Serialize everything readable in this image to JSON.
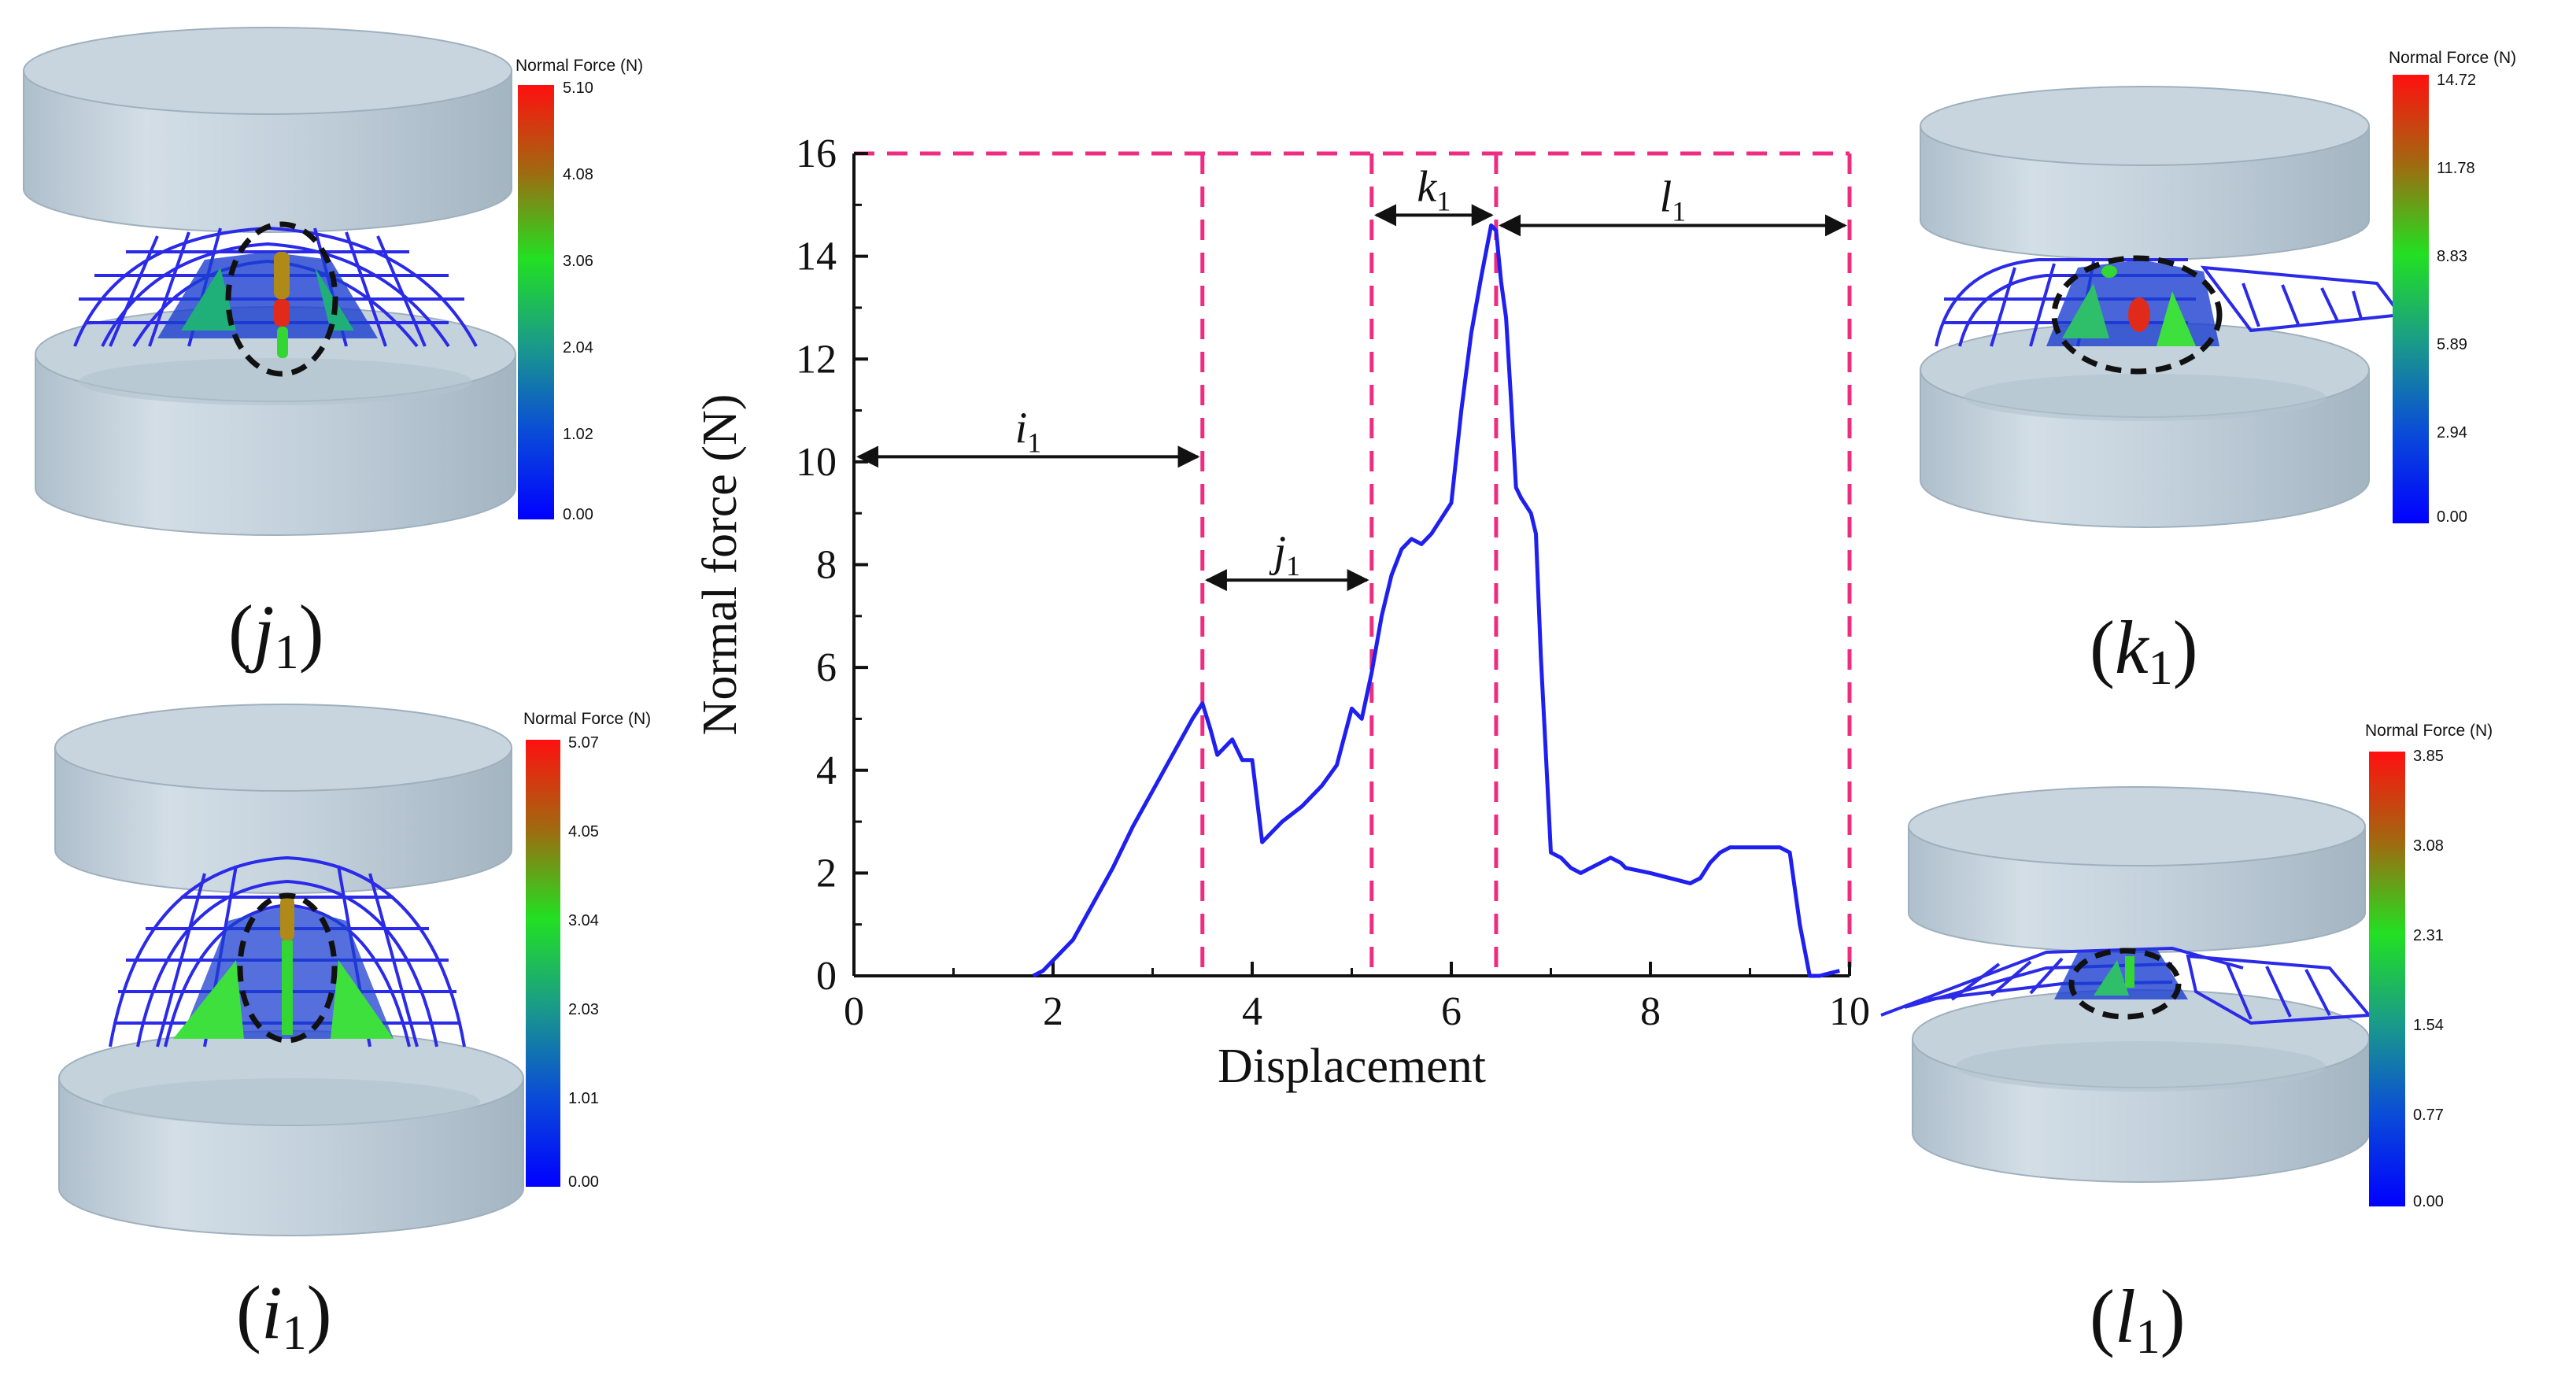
{
  "figure": {
    "panels": [
      {
        "id": "j1",
        "label_main": "j",
        "label_sub": "1",
        "colorbar": {
          "title": "Normal Force (N)",
          "ticks": [
            "5.10",
            "4.08",
            "3.06",
            "2.04",
            "1.02",
            "0.00"
          ]
        }
      },
      {
        "id": "i1",
        "label_main": "i",
        "label_sub": "1",
        "colorbar": {
          "title": "Normal Force (N)",
          "ticks": [
            "5.07",
            "4.05",
            "3.04",
            "2.03",
            "1.01",
            "0.00"
          ]
        }
      },
      {
        "id": "k1",
        "label_main": "k",
        "label_sub": "1",
        "colorbar": {
          "title": "Normal Force (N)",
          "ticks": [
            "14.72",
            "11.78",
            "8.83",
            "5.89",
            "2.94",
            "0.00"
          ]
        }
      },
      {
        "id": "l1",
        "label_main": "l",
        "label_sub": "1",
        "colorbar": {
          "title": "Normal Force (N)",
          "ticks": [
            "3.85",
            "3.08",
            "2.31",
            "1.54",
            "0.77",
            "0.00"
          ]
        }
      }
    ],
    "colors": {
      "curve": "#1f1ff0",
      "dash": "#ee2d82",
      "mesh": "#2a2ae8",
      "cylinder": "#c9d6e0",
      "cylinder_edge": "#a9b8c4"
    }
  },
  "chart_data": {
    "type": "line",
    "xlabel": "Displacement",
    "ylabel": "Normal force (N)",
    "xlim": [
      0,
      10
    ],
    "ylim": [
      0,
      16
    ],
    "xticks": [
      "0",
      "2",
      "4",
      "6",
      "8",
      "10"
    ],
    "yticks": [
      "0",
      "2",
      "4",
      "6",
      "8",
      "10",
      "12",
      "14",
      "16"
    ],
    "series": [
      {
        "name": "Normal force",
        "x": [
          1.8,
          1.9,
          2.0,
          2.2,
          2.4,
          2.6,
          2.8,
          3.0,
          3.2,
          3.4,
          3.5,
          3.58,
          3.65,
          3.8,
          3.9,
          4.0,
          4.1,
          4.2,
          4.3,
          4.5,
          4.7,
          4.85,
          5.0,
          5.1,
          5.2,
          5.3,
          5.4,
          5.5,
          5.6,
          5.7,
          5.8,
          5.9,
          6.0,
          6.1,
          6.2,
          6.3,
          6.4,
          6.45,
          6.5,
          6.55,
          6.6,
          6.65,
          6.7,
          6.8,
          6.85,
          6.9,
          6.95,
          7.0,
          7.1,
          7.2,
          7.3,
          7.4,
          7.5,
          7.6,
          7.7,
          7.75,
          8.0,
          8.2,
          8.4,
          8.5,
          8.6,
          8.7,
          8.8,
          9.0,
          9.2,
          9.3,
          9.4,
          9.5,
          9.6,
          9.7,
          9.8,
          9.9
        ],
        "y": [
          0.0,
          0.1,
          0.3,
          0.7,
          1.4,
          2.1,
          2.9,
          3.6,
          4.3,
          5.0,
          5.3,
          4.8,
          4.3,
          4.6,
          4.2,
          4.2,
          2.6,
          2.8,
          3.0,
          3.3,
          3.7,
          4.1,
          5.2,
          5.0,
          5.9,
          7.0,
          7.8,
          8.3,
          8.5,
          8.4,
          8.6,
          8.9,
          9.2,
          11.0,
          12.5,
          13.6,
          14.6,
          14.5,
          13.5,
          12.8,
          11.2,
          9.5,
          9.3,
          9.0,
          8.6,
          6.2,
          4.3,
          2.4,
          2.3,
          2.1,
          2.0,
          2.1,
          2.2,
          2.3,
          2.2,
          2.1,
          2.0,
          1.9,
          1.8,
          1.9,
          2.2,
          2.4,
          2.5,
          2.5,
          2.5,
          2.5,
          2.4,
          1.0,
          0.0,
          0.0,
          0.05,
          0.1
        ]
      }
    ],
    "regions": [
      {
        "label_main": "i",
        "label_sub": "1",
        "x_start": 0,
        "x_end": 3.5,
        "arrow_y": 10.1
      },
      {
        "label_main": "j",
        "label_sub": "1",
        "x_start": 3.5,
        "x_end": 5.2,
        "arrow_y": 7.7
      },
      {
        "label_main": "k",
        "label_sub": "1",
        "x_start": 5.2,
        "x_end": 6.45,
        "arrow_y": 14.8
      },
      {
        "label_main": "l",
        "label_sub": "1",
        "x_start": 6.45,
        "x_end": 10,
        "arrow_y": 14.6
      }
    ],
    "dashed_boundaries_x": [
      3.5,
      5.2,
      6.45,
      10
    ],
    "dashed_top_y": 16
  }
}
